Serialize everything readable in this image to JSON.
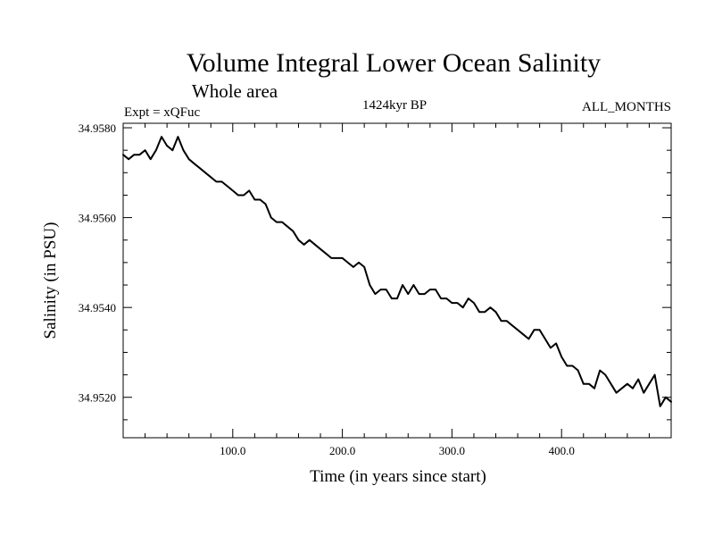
{
  "chart_data": {
    "type": "line",
    "title": "Volume Integral Lower Ocean Salinity",
    "subtitle": "Whole area",
    "experiment": "Expt = xQFuc",
    "period": "1424kyr BP",
    "months": "ALL_MONTHS",
    "xlabel": "Time (in years since start)",
    "ylabel": "Salinity (in PSU)",
    "xlim": [
      0,
      500
    ],
    "ylim": [
      34.9511,
      34.9581
    ],
    "x_ticks": [
      100,
      200,
      300,
      400
    ],
    "x_tick_labels": [
      "100.0",
      "200.0",
      "300.0",
      "400.0"
    ],
    "y_ticks": [
      34.952,
      34.954,
      34.956,
      34.958
    ],
    "y_tick_labels": [
      "34.9520",
      "34.9540",
      "34.9560",
      "34.9580"
    ],
    "series": [
      {
        "name": "salinity",
        "x": [
          0,
          5,
          10,
          15,
          20,
          25,
          30,
          35,
          40,
          45,
          50,
          55,
          60,
          65,
          70,
          75,
          80,
          85,
          90,
          95,
          100,
          105,
          110,
          115,
          120,
          125,
          130,
          135,
          140,
          145,
          150,
          155,
          160,
          165,
          170,
          175,
          180,
          185,
          190,
          195,
          200,
          205,
          210,
          215,
          220,
          225,
          230,
          235,
          240,
          245,
          250,
          255,
          260,
          265,
          270,
          275,
          280,
          285,
          290,
          295,
          300,
          305,
          310,
          315,
          320,
          325,
          330,
          335,
          340,
          345,
          350,
          355,
          360,
          365,
          370,
          375,
          380,
          385,
          390,
          395,
          400,
          405,
          410,
          415,
          420,
          425,
          430,
          435,
          440,
          445,
          450,
          455,
          460,
          465,
          470,
          475,
          480,
          485,
          490,
          495,
          500
        ],
        "y": [
          34.9574,
          34.9573,
          34.9574,
          34.9574,
          34.9575,
          34.9573,
          34.9575,
          34.9578,
          34.9576,
          34.9575,
          34.9578,
          34.9575,
          34.9573,
          34.9572,
          34.9571,
          34.957,
          34.9569,
          34.9568,
          34.9568,
          34.9567,
          34.9566,
          34.9565,
          34.9565,
          34.9566,
          34.9564,
          34.9564,
          34.9563,
          34.956,
          34.9559,
          34.9559,
          34.9558,
          34.9557,
          34.9555,
          34.9554,
          34.9555,
          34.9554,
          34.9553,
          34.9552,
          34.9551,
          34.9551,
          34.9551,
          34.955,
          34.9549,
          34.955,
          34.9549,
          34.9545,
          34.9543,
          34.9544,
          34.9544,
          34.9542,
          34.9542,
          34.9545,
          34.9543,
          34.9545,
          34.9543,
          34.9543,
          34.9544,
          34.9544,
          34.9542,
          34.9542,
          34.9541,
          34.9541,
          34.954,
          34.9542,
          34.9541,
          34.9539,
          34.9539,
          34.954,
          34.9539,
          34.9537,
          34.9537,
          34.9536,
          34.9535,
          34.9534,
          34.9533,
          34.9535,
          34.9535,
          34.9533,
          34.9531,
          34.9532,
          34.9529,
          34.9527,
          34.9527,
          34.9526,
          34.9523,
          34.9523,
          34.9522,
          34.9526,
          34.9525,
          34.9523,
          34.9521,
          34.9522,
          34.9523,
          34.9522,
          34.9524,
          34.9521,
          34.9523,
          34.9525,
          34.9518,
          34.952,
          34.9519
        ]
      }
    ]
  }
}
